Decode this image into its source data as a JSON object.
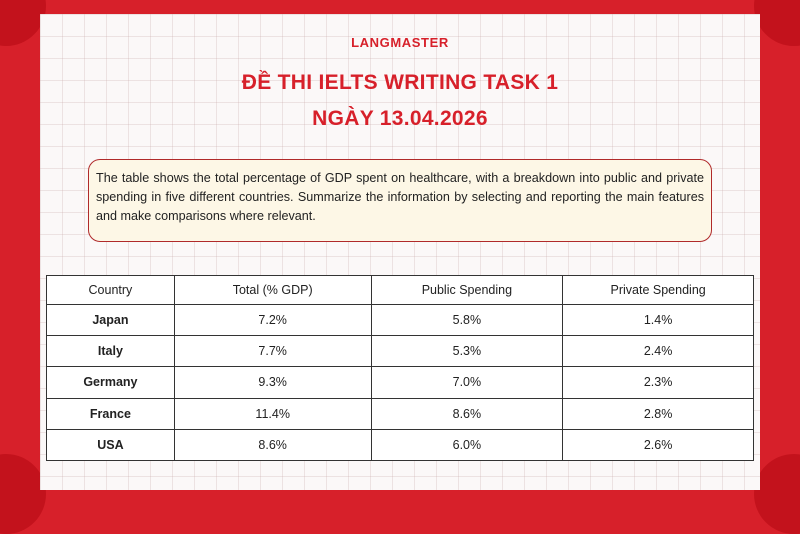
{
  "brand": "LANGMASTER",
  "title_line1": "ĐỀ THI IELTS WRITING TASK 1",
  "title_line2": "NGÀY 13.04.2026",
  "prompt": "The table shows the total percentage of GDP spent on healthcare, with a breakdown into public and private spending in five different countries. Summarize the information by selecting and reporting the main features and make comparisons where relevant.",
  "colors": {
    "brand_red": "#d7202a",
    "prompt_bg": "#fdf7e6",
    "sheet_bg": "#fbf8f8"
  },
  "chart_data": {
    "type": "table",
    "columns": [
      "Country",
      "Total (% GDP)",
      "Public Spending",
      "Private Spending"
    ],
    "rows": [
      [
        "Japan",
        "7.2%",
        "5.8%",
        "1.4%"
      ],
      [
        "Italy",
        "7.7%",
        "5.3%",
        "2.4%"
      ],
      [
        "Germany",
        "9.3%",
        "7.0%",
        "2.3%"
      ],
      [
        "France",
        "11.4%",
        "8.6%",
        "2.8%"
      ],
      [
        "USA",
        "8.6%",
        "6.0%",
        "2.6%"
      ]
    ]
  }
}
